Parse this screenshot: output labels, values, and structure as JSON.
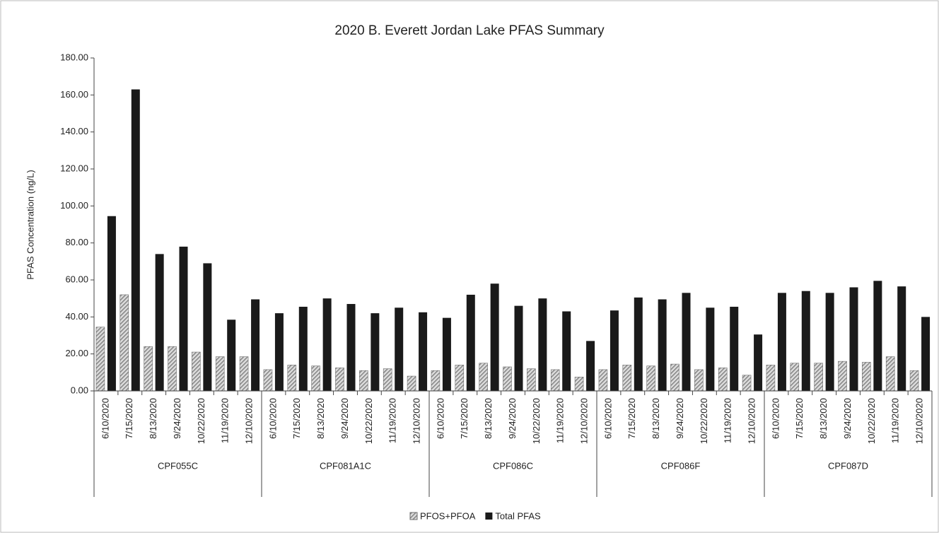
{
  "chart_data": {
    "type": "bar",
    "title": "2020 B. Everett Jordan Lake PFAS Summary",
    "y_label": "PFAS Concentration (ng/L)",
    "groups": [
      {
        "name": "CPF055C",
        "categories": [
          "6/10/2020",
          "7/15/2020",
          "8/13/2020",
          "9/24/2020",
          "10/22/2020",
          "11/19/2020",
          "12/10/2020"
        ]
      },
      {
        "name": "CPF081A1C",
        "categories": [
          "6/10/2020",
          "7/15/2020",
          "8/13/2020",
          "9/24/2020",
          "10/22/2020",
          "11/19/2020",
          "12/10/2020"
        ]
      },
      {
        "name": "CPF086C",
        "categories": [
          "6/10/2020",
          "7/15/2020",
          "8/13/2020",
          "9/24/2020",
          "10/22/2020",
          "11/19/2020",
          "12/10/2020"
        ]
      },
      {
        "name": "CPF086F",
        "categories": [
          "6/10/2020",
          "7/15/2020",
          "8/13/2020",
          "9/24/2020",
          "10/22/2020",
          "11/19/2020",
          "12/10/2020"
        ]
      },
      {
        "name": "CPF087D",
        "categories": [
          "6/10/2020",
          "7/15/2020",
          "8/13/2020",
          "9/24/2020",
          "10/22/2020",
          "11/19/2020",
          "12/10/2020"
        ]
      }
    ],
    "series": [
      {
        "name": "PFOS+PFOA",
        "color": "#6e6e6e",
        "hatch": true,
        "values": [
          34.5,
          52,
          24,
          24,
          21,
          18.5,
          18.5,
          11.5,
          14,
          13.5,
          12.5,
          11,
          12,
          8,
          11,
          14,
          15,
          13,
          12,
          11.5,
          7.5,
          11.5,
          14,
          13.5,
          14.5,
          11.5,
          12.5,
          8.5,
          14,
          15,
          15,
          16,
          15.5,
          18.5,
          11
        ]
      },
      {
        "name": "Total PFAS",
        "color": "#1a1a1a",
        "hatch": false,
        "values": [
          94.5,
          163,
          74,
          78,
          69,
          38.5,
          49.5,
          42,
          45.5,
          50,
          47,
          42,
          45,
          42.5,
          39.5,
          52,
          58,
          46,
          50,
          43,
          27,
          43.5,
          50.5,
          49.5,
          53,
          45,
          45.5,
          30.5,
          53,
          54,
          53,
          56,
          59.5,
          56.5,
          40
        ]
      }
    ],
    "ylim": [
      0,
      180
    ],
    "yticks": [
      {
        "value": 0,
        "label": "0.00"
      },
      {
        "value": 20,
        "label": "20.00"
      },
      {
        "value": 40,
        "label": "40.00"
      },
      {
        "value": 60,
        "label": "60.00"
      },
      {
        "value": 80,
        "label": "80.00"
      },
      {
        "value": 100,
        "label": "100.00"
      },
      {
        "value": 120,
        "label": "120.00"
      },
      {
        "value": 140,
        "label": "140.00"
      },
      {
        "value": 160,
        "label": "160.00"
      },
      {
        "value": 180,
        "label": "180.00"
      }
    ],
    "legend": "bottom"
  }
}
